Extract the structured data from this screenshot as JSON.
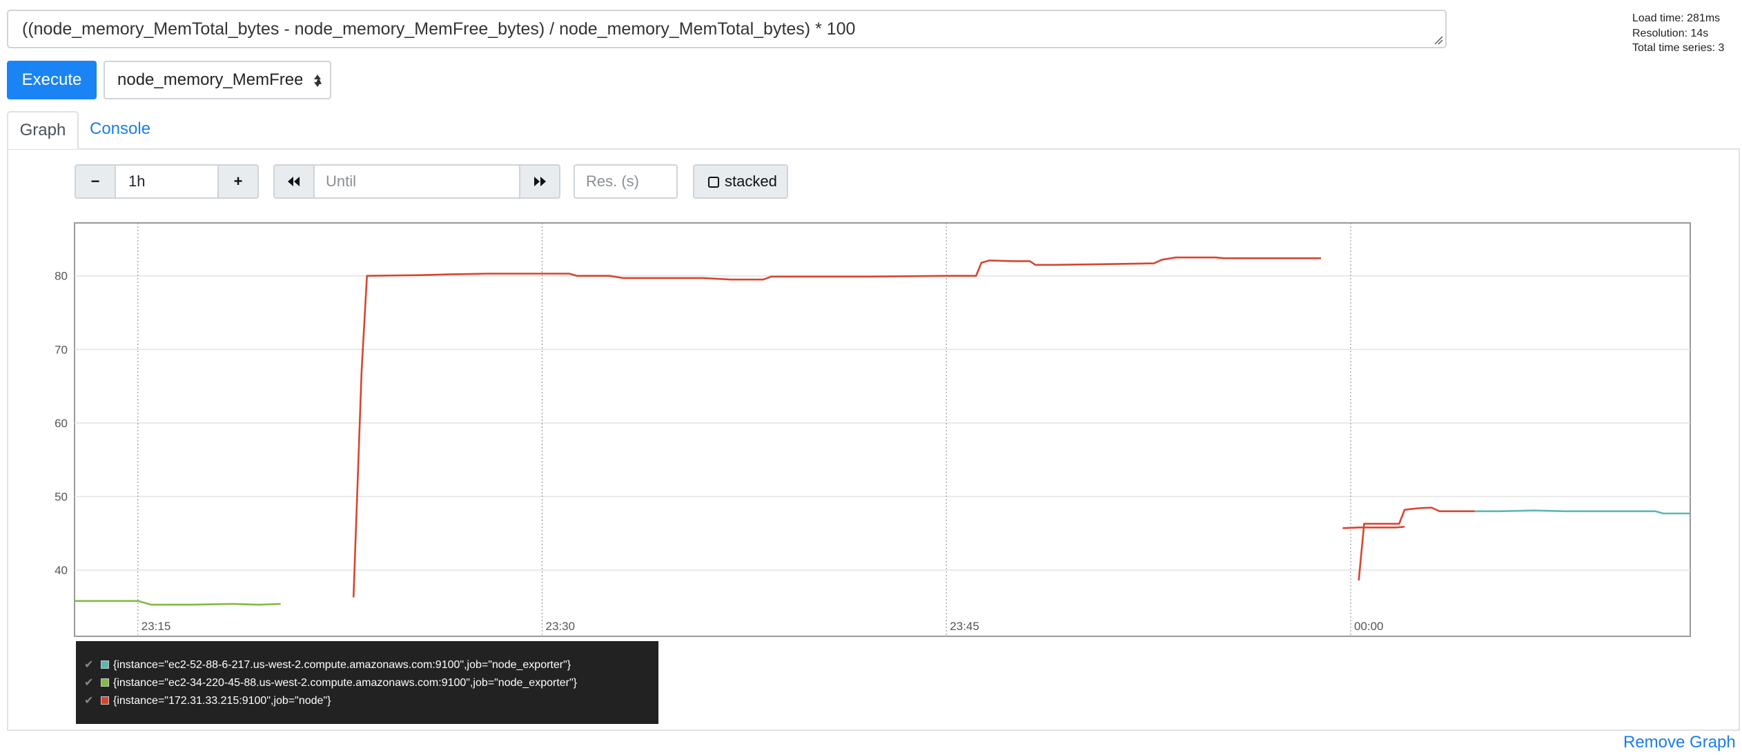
{
  "query": {
    "expression": "((node_memory_MemTotal_bytes - node_memory_MemFree_bytes) / node_memory_MemTotal_bytes) * 100",
    "execute_label": "Execute",
    "metric_select_value": "node_memory_MemFree"
  },
  "stats": {
    "load_time": "Load time: 281ms",
    "resolution": "Resolution: 14s",
    "total_series": "Total time series: 3"
  },
  "tabs": {
    "graph": "Graph",
    "console": "Console"
  },
  "controls": {
    "minus": "−",
    "range": "1h",
    "plus": "+",
    "back_icon": "double-chevron-left",
    "until_placeholder": "Until",
    "forward_icon": "double-chevron-right",
    "res_placeholder": "Res. (s)",
    "stacked_label": "stacked"
  },
  "remove_graph": "Remove Graph",
  "legend": [
    {
      "label": "{instance=\"ec2-52-88-6-217.us-west-2.compute.amazonaws.com:9100\",job=\"node_exporter\"}",
      "color": "#5ab8b0"
    },
    {
      "label": "{instance=\"ec2-34-220-45-88.us-west-2.compute.amazonaws.com:9100\",job=\"node_exporter\"}",
      "color": "#7fbb3f"
    },
    {
      "label": "{instance=\"172.31.33.215:9100\",job=\"node\"}",
      "color": "#d6452f"
    }
  ],
  "chart_data": {
    "type": "line",
    "title": "",
    "xlabel": "",
    "ylabel": "",
    "x_ticks": [
      "23:15",
      "23:30",
      "23:45",
      "00:00"
    ],
    "y_ticks": [
      40,
      50,
      60,
      70,
      80
    ],
    "x_unit": "minutes after 23:00",
    "xlim": [
      12.65,
      72.6
    ],
    "ylim": [
      31,
      87.2
    ],
    "grid": true,
    "series": [
      {
        "color": "#5ab8b0",
        "segments": [
          [
            [
              64.6,
              48.0
            ],
            [
              65.5,
              48.0
            ],
            [
              66.8,
              48.1
            ],
            [
              68.0,
              48.0
            ],
            [
              69.5,
              48.0
            ],
            [
              71.3,
              48.0
            ],
            [
              71.6,
              47.7
            ],
            [
              72.6,
              47.7
            ]
          ]
        ]
      },
      {
        "color": "#7fbb3f",
        "segments": [
          [
            [
              12.65,
              35.8
            ],
            [
              15.0,
              35.8
            ],
            [
              15.5,
              35.3
            ],
            [
              17.0,
              35.3
            ],
            [
              18.5,
              35.4
            ],
            [
              19.5,
              35.3
            ],
            [
              20.3,
              35.4
            ]
          ]
        ]
      },
      {
        "color": "#d6452f",
        "segments": [
          [
            [
              23.0,
              36.3
            ],
            [
              23.3,
              67.0
            ],
            [
              23.5,
              80.0
            ],
            [
              25.5,
              80.1
            ],
            [
              26.5,
              80.2
            ],
            [
              28.0,
              80.3
            ],
            [
              31.0,
              80.3
            ],
            [
              31.3,
              80.0
            ],
            [
              32.5,
              80.0
            ],
            [
              33.0,
              79.7
            ],
            [
              34.5,
              79.7
            ],
            [
              36.0,
              79.7
            ],
            [
              37.0,
              79.5
            ],
            [
              38.2,
              79.5
            ],
            [
              38.5,
              79.9
            ],
            [
              42.0,
              79.9
            ],
            [
              45.0,
              80.0
            ],
            [
              46.1,
              80.0
            ],
            [
              46.3,
              81.8
            ],
            [
              46.6,
              82.1
            ],
            [
              47.5,
              82.0
            ],
            [
              48.1,
              82.0
            ],
            [
              48.3,
              81.5
            ],
            [
              49.0,
              81.5
            ],
            [
              51.0,
              81.6
            ],
            [
              52.7,
              81.7
            ],
            [
              53.0,
              82.2
            ],
            [
              53.5,
              82.5
            ],
            [
              55.0,
              82.5
            ],
            [
              55.3,
              82.4
            ],
            [
              58.9,
              82.4
            ]
          ],
          [
            [
              59.7,
              45.7
            ],
            [
              60.3,
              45.8
            ],
            [
              61.7,
              45.8
            ],
            [
              62.0,
              45.9
            ]
          ],
          [
            [
              60.3,
              38.6
            ],
            [
              60.5,
              46.3
            ],
            [
              61.0,
              46.3
            ],
            [
              61.8,
              46.3
            ],
            [
              62.0,
              48.2
            ],
            [
              62.5,
              48.4
            ],
            [
              63.0,
              48.5
            ],
            [
              63.3,
              48.0
            ],
            [
              64.0,
              48.0
            ],
            [
              64.6,
              48.0
            ]
          ]
        ]
      }
    ]
  }
}
